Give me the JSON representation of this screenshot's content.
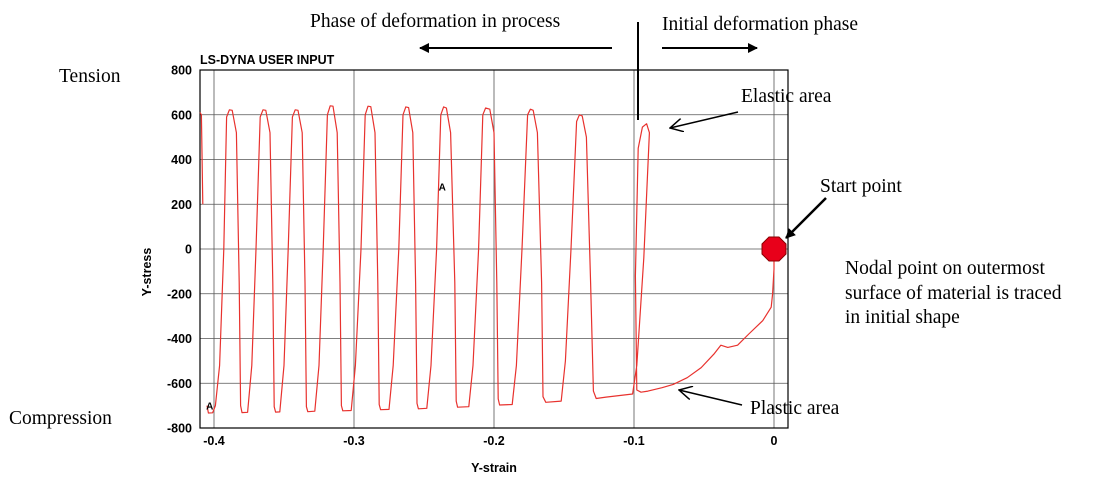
{
  "chart_data": {
    "type": "line",
    "title": "LS-DYNA USER INPUT",
    "xlabel": "Y-strain",
    "ylabel": "Y-stress",
    "xlim": [
      -0.41,
      0.01
    ],
    "ylim": [
      -800,
      800
    ],
    "x_ticks": [
      -0.4,
      -0.3,
      -0.2,
      -0.1,
      0
    ],
    "x_tick_labels": [
      "-0.4",
      "-0.3",
      "-0.2",
      "-0.1",
      "0"
    ],
    "y_ticks": [
      800,
      600,
      400,
      200,
      0,
      -200,
      -400,
      -600,
      -800
    ],
    "y_tick_labels": [
      "800",
      "600",
      "400",
      "200",
      "0",
      "-200",
      "-400",
      "-600",
      "-800"
    ],
    "grid": true,
    "line_color": "#e8322e",
    "series": [
      {
        "values_xy": [
          [
            0.0,
            -20
          ],
          [
            0.0,
            -90
          ],
          [
            -0.001,
            -200
          ],
          [
            -0.002,
            -260
          ],
          [
            -0.008,
            -320
          ],
          [
            -0.018,
            -380
          ],
          [
            -0.026,
            -430
          ],
          [
            -0.033,
            -440
          ],
          [
            -0.038,
            -430
          ],
          [
            -0.043,
            -470
          ],
          [
            -0.052,
            -530
          ],
          [
            -0.062,
            -575
          ],
          [
            -0.072,
            -605
          ],
          [
            -0.08,
            -620
          ],
          [
            -0.09,
            -635
          ],
          [
            -0.095,
            -640
          ],
          [
            -0.098,
            -630
          ],
          [
            -0.099,
            -120
          ],
          [
            -0.097,
            450
          ],
          [
            -0.094,
            545
          ],
          [
            -0.091,
            560
          ],
          [
            -0.089,
            520
          ],
          [
            -0.093,
            -40
          ],
          [
            -0.098,
            -520
          ],
          [
            -0.101,
            -648
          ],
          [
            -0.12,
            -662
          ],
          [
            -0.127,
            -668
          ],
          [
            -0.129,
            -635
          ],
          [
            -0.131,
            -150
          ],
          [
            -0.134,
            500
          ],
          [
            -0.137,
            595
          ],
          [
            -0.139,
            600
          ],
          [
            -0.141,
            570
          ],
          [
            -0.145,
            0
          ],
          [
            -0.149,
            -500
          ],
          [
            -0.152,
            -680
          ],
          [
            -0.163,
            -685
          ],
          [
            -0.165,
            -660
          ],
          [
            -0.166,
            -150
          ],
          [
            -0.169,
            520
          ],
          [
            -0.172,
            620
          ],
          [
            -0.174,
            625
          ],
          [
            -0.176,
            600
          ],
          [
            -0.18,
            0
          ],
          [
            -0.184,
            -520
          ],
          [
            -0.187,
            -695
          ],
          [
            -0.196,
            -697
          ],
          [
            -0.197,
            -670
          ],
          [
            -0.198,
            -150
          ],
          [
            -0.2,
            520
          ],
          [
            -0.203,
            625
          ],
          [
            -0.206,
            630
          ],
          [
            -0.208,
            600
          ],
          [
            -0.211,
            0
          ],
          [
            -0.215,
            -520
          ],
          [
            -0.218,
            -705
          ],
          [
            -0.226,
            -707
          ],
          [
            -0.227,
            -680
          ],
          [
            -0.228,
            -150
          ],
          [
            -0.231,
            520
          ],
          [
            -0.234,
            630
          ],
          [
            -0.236,
            635
          ],
          [
            -0.238,
            600
          ],
          [
            -0.241,
            0
          ],
          [
            -0.245,
            -520
          ],
          [
            -0.248,
            -712
          ],
          [
            -0.254,
            -714
          ],
          [
            -0.255,
            -690
          ],
          [
            -0.256,
            -150
          ],
          [
            -0.258,
            520
          ],
          [
            -0.261,
            632
          ],
          [
            -0.263,
            635
          ],
          [
            -0.265,
            600
          ],
          [
            -0.268,
            0
          ],
          [
            -0.272,
            -520
          ],
          [
            -0.275,
            -717
          ],
          [
            -0.281,
            -718
          ],
          [
            -0.282,
            -695
          ],
          [
            -0.283,
            -150
          ],
          [
            -0.285,
            520
          ],
          [
            -0.288,
            636
          ],
          [
            -0.29,
            638
          ],
          [
            -0.292,
            600
          ],
          [
            -0.295,
            0
          ],
          [
            -0.299,
            -520
          ],
          [
            -0.302,
            -722
          ],
          [
            -0.308,
            -723
          ],
          [
            -0.309,
            -700
          ],
          [
            -0.31,
            -150
          ],
          [
            -0.312,
            520
          ],
          [
            -0.315,
            638
          ],
          [
            -0.317,
            640
          ],
          [
            -0.319,
            600
          ],
          [
            -0.322,
            0
          ],
          [
            -0.325,
            -520
          ],
          [
            -0.328,
            -725
          ],
          [
            -0.333,
            -727
          ],
          [
            -0.334,
            -705
          ],
          [
            -0.335,
            -150
          ],
          [
            -0.337,
            520
          ],
          [
            -0.34,
            620
          ],
          [
            -0.342,
            622
          ],
          [
            -0.344,
            590
          ],
          [
            -0.347,
            0
          ],
          [
            -0.35,
            -520
          ],
          [
            -0.353,
            -728
          ],
          [
            -0.356,
            -729
          ],
          [
            -0.357,
            -705
          ],
          [
            -0.358,
            -150
          ],
          [
            -0.36,
            520
          ],
          [
            -0.363,
            620
          ],
          [
            -0.365,
            622
          ],
          [
            -0.367,
            590
          ],
          [
            -0.37,
            0
          ],
          [
            -0.373,
            -520
          ],
          [
            -0.376,
            -730
          ],
          [
            -0.38,
            -731
          ],
          [
            -0.381,
            -700
          ],
          [
            -0.382,
            -150
          ],
          [
            -0.384,
            520
          ],
          [
            -0.387,
            620
          ],
          [
            -0.389,
            622
          ],
          [
            -0.391,
            590
          ],
          [
            -0.393,
            0
          ],
          [
            -0.396,
            -520
          ],
          [
            -0.399,
            -700
          ],
          [
            -0.401,
            -732
          ],
          [
            -0.404,
            -733
          ],
          [
            -0.405,
            -700
          ]
        ]
      },
      {
        "values_xy": [
          [
            -0.408,
            200
          ],
          [
            -0.409,
            600
          ],
          [
            -0.41,
            610
          ]
        ]
      }
    ],
    "point_markers": [
      {
        "label": "A",
        "x": -0.237,
        "y": 280
      },
      {
        "label": "A",
        "x": -0.403,
        "y": -700
      }
    ],
    "start_point": {
      "x": 0,
      "y": 0,
      "color": "#e8001a"
    }
  },
  "annotations": {
    "phase_in_process": "Phase of deformation in process",
    "initial_phase": "Initial deformation phase",
    "elastic_area": "Elastic area",
    "start_point": "Start point",
    "nodal_line1": "Nodal point on outermost",
    "nodal_line2": "surface of material is traced",
    "nodal_line3": "in initial shape",
    "plastic_area": "Plastic area",
    "tension": "Tension",
    "compression": "Compression"
  }
}
